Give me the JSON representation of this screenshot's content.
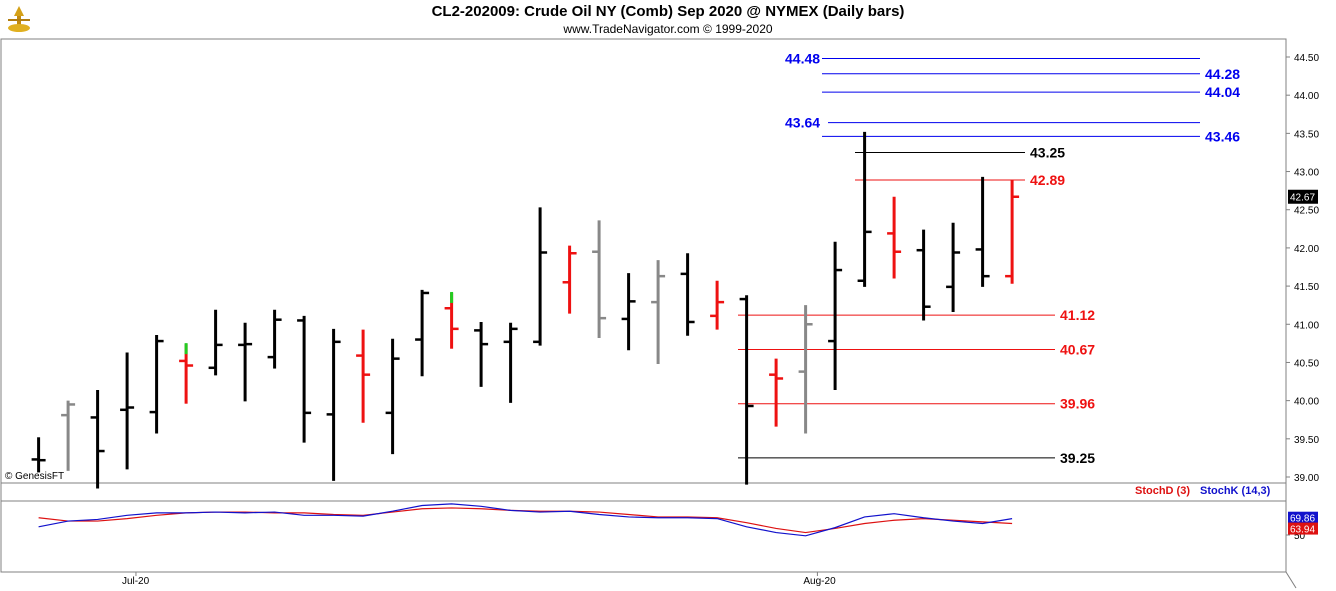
{
  "header": {
    "title": "CL2-202009:  Crude Oil NY (Comb) Sep 2020 @ NYMEX  (Daily bars)",
    "subtitle": "www.TradeNavigator.com © 1999-2020"
  },
  "watermark": "© GenesisFT",
  "colors": {
    "up_bar": "#000000",
    "down_bar": "#ee1111",
    "neutral_bar": "#888888",
    "green_tick": "#22cc22",
    "blue_level": "#0000ee",
    "red_level": "#ee1111",
    "black_level": "#000000",
    "stoch_d": "#dd1111",
    "stoch_k": "#1111cc"
  },
  "chart_data": [
    {
      "type": "ohlc",
      "yaxis": {
        "min": 39.0,
        "max": 44.5,
        "ticks": [
          "39.00",
          "39.50",
          "40.00",
          "40.50",
          "41.00",
          "41.50",
          "42.00",
          "42.50",
          "43.00",
          "43.50",
          "44.00",
          "44.50"
        ]
      },
      "x_labels": [
        {
          "label": "Jul-20",
          "index": 3.3
        },
        {
          "label": "Aug-20",
          "index": 26.4
        }
      ],
      "last_price": "42.67",
      "bars": [
        {
          "o": 39.23,
          "h": 39.52,
          "l": 39.06,
          "c": 39.22,
          "color": "black"
        },
        {
          "o": 39.81,
          "h": 40.0,
          "l": 39.08,
          "c": 39.95,
          "color": "gray"
        },
        {
          "o": 39.78,
          "h": 40.14,
          "l": 38.85,
          "c": 39.34,
          "color": "black"
        },
        {
          "o": 39.88,
          "h": 40.63,
          "l": 39.1,
          "c": 39.91,
          "color": "black"
        },
        {
          "o": 39.85,
          "h": 40.86,
          "l": 39.57,
          "c": 40.78,
          "color": "black"
        },
        {
          "o": 40.52,
          "h": 40.74,
          "l": 39.96,
          "c": 40.46,
          "color": "red"
        },
        {
          "o": 40.43,
          "h": 41.19,
          "l": 40.33,
          "c": 40.73,
          "color": "black"
        },
        {
          "o": 40.73,
          "h": 41.02,
          "l": 39.99,
          "c": 40.74,
          "color": "black"
        },
        {
          "o": 40.57,
          "h": 41.19,
          "l": 40.42,
          "c": 41.06,
          "color": "black"
        },
        {
          "o": 41.05,
          "h": 41.11,
          "l": 39.45,
          "c": 39.84,
          "color": "black"
        },
        {
          "o": 39.82,
          "h": 40.94,
          "l": 38.95,
          "c": 40.77,
          "color": "black"
        },
        {
          "o": 40.59,
          "h": 40.93,
          "l": 39.71,
          "c": 40.34,
          "color": "red"
        },
        {
          "o": 39.84,
          "h": 40.81,
          "l": 39.3,
          "c": 40.55,
          "color": "black"
        },
        {
          "o": 40.8,
          "h": 41.45,
          "l": 40.32,
          "c": 41.41,
          "color": "black"
        },
        {
          "o": 41.21,
          "h": 41.41,
          "l": 40.68,
          "c": 40.94,
          "color": "red"
        },
        {
          "o": 40.92,
          "h": 41.03,
          "l": 40.18,
          "c": 40.74,
          "color": "black"
        },
        {
          "o": 40.77,
          "h": 41.02,
          "l": 39.97,
          "c": 40.94,
          "color": "black"
        },
        {
          "o": 40.77,
          "h": 42.53,
          "l": 40.72,
          "c": 41.94,
          "color": "black"
        },
        {
          "o": 41.55,
          "h": 42.03,
          "l": 41.14,
          "c": 41.93,
          "color": "red"
        },
        {
          "o": 41.95,
          "h": 42.36,
          "l": 40.82,
          "c": 41.08,
          "color": "gray"
        },
        {
          "o": 41.07,
          "h": 41.67,
          "l": 40.66,
          "c": 41.3,
          "color": "black"
        },
        {
          "o": 41.29,
          "h": 41.84,
          "l": 40.48,
          "c": 41.63,
          "color": "gray"
        },
        {
          "o": 41.66,
          "h": 41.93,
          "l": 40.85,
          "c": 41.03,
          "color": "black"
        },
        {
          "o": 41.11,
          "h": 41.57,
          "l": 40.93,
          "c": 41.29,
          "color": "red"
        },
        {
          "o": 41.33,
          "h": 41.38,
          "l": 38.9,
          "c": 39.93,
          "color": "black"
        },
        {
          "o": 40.34,
          "h": 40.55,
          "l": 39.66,
          "c": 40.29,
          "color": "red"
        },
        {
          "o": 40.38,
          "h": 41.25,
          "l": 39.57,
          "c": 41.0,
          "color": "gray"
        },
        {
          "o": 40.78,
          "h": 42.08,
          "l": 40.14,
          "c": 41.71,
          "color": "black"
        },
        {
          "o": 41.57,
          "h": 43.52,
          "l": 41.49,
          "c": 42.21,
          "color": "black"
        },
        {
          "o": 42.19,
          "h": 42.67,
          "l": 41.6,
          "c": 41.95,
          "color": "red"
        },
        {
          "o": 41.97,
          "h": 42.24,
          "l": 41.05,
          "c": 41.23,
          "color": "black"
        },
        {
          "o": 41.49,
          "h": 42.33,
          "l": 41.16,
          "c": 41.94,
          "color": "black"
        },
        {
          "o": 41.98,
          "h": 42.93,
          "l": 41.49,
          "c": 41.63,
          "color": "black"
        },
        {
          "o": 41.63,
          "h": 42.89,
          "l": 41.53,
          "c": 42.67,
          "color": "red"
        }
      ],
      "levels": [
        {
          "value": 44.48,
          "label": "44.48",
          "color": "blue",
          "label_side": "left"
        },
        {
          "value": 44.28,
          "label": "44.28",
          "color": "blue",
          "label_side": "right"
        },
        {
          "value": 44.04,
          "label": "44.04",
          "color": "blue",
          "label_side": "right"
        },
        {
          "value": 43.64,
          "label": "43.64",
          "color": "blue",
          "label_side": "left"
        },
        {
          "value": 43.46,
          "label": "43.46",
          "color": "blue",
          "label_side": "right"
        },
        {
          "value": 43.25,
          "label": "43.25",
          "color": "black",
          "label_side": "end"
        },
        {
          "value": 42.89,
          "label": "42.89",
          "color": "red",
          "label_side": "end"
        },
        {
          "value": 41.12,
          "label": "41.12",
          "color": "red",
          "label_side": "end"
        },
        {
          "value": 40.67,
          "label": "40.67",
          "color": "red",
          "label_side": "end"
        },
        {
          "value": 39.96,
          "label": "39.96",
          "color": "red",
          "label_side": "end"
        },
        {
          "value": 39.25,
          "label": "39.25",
          "color": "black",
          "label_side": "end"
        }
      ]
    },
    {
      "type": "line",
      "legend": [
        {
          "name": "StochD (3)",
          "color": "red"
        },
        {
          "name": "StochK (14,3)",
          "color": "blue"
        }
      ],
      "yaxis": {
        "min": 0,
        "max": 100,
        "ticks": [
          "50"
        ]
      },
      "last_values": {
        "stoch_k": "69.86",
        "stoch_d": "63.94"
      },
      "series": [
        {
          "name": "StochD (3)",
          "values": [
            71,
            67,
            67,
            70,
            74,
            77,
            78,
            78,
            77,
            77,
            75,
            74,
            78,
            82,
            83,
            82,
            80,
            79,
            79,
            78,
            75,
            72,
            72,
            71,
            65,
            58,
            53,
            58,
            64,
            68,
            70,
            68,
            66,
            64
          ]
        },
        {
          "name": "StochK (14,3)",
          "values": [
            60,
            67,
            69,
            74,
            77,
            77,
            78,
            77,
            78,
            74,
            74,
            73,
            79,
            86,
            88,
            85,
            80,
            78,
            79,
            75,
            72,
            71,
            71,
            70,
            60,
            53,
            49,
            59,
            72,
            76,
            71,
            67,
            64,
            70
          ]
        }
      ]
    }
  ]
}
